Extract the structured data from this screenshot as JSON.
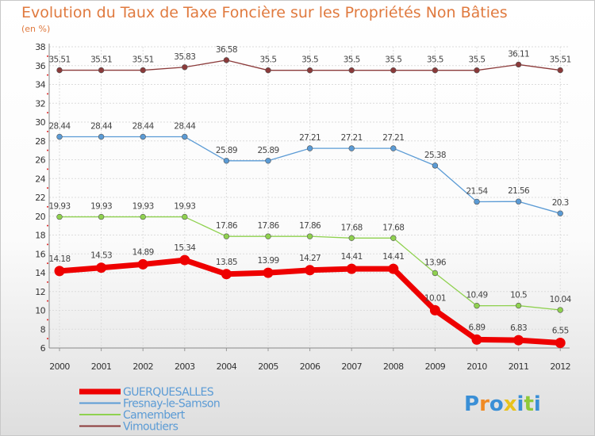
{
  "chart_data": {
    "type": "line",
    "title": "Evolution du Taux de Taxe Foncière sur les Propriétés Non Bâties",
    "subtitle": "(en %)",
    "xlabel": "",
    "ylabel": "",
    "ylim": [
      6,
      38
    ],
    "yticks": [
      6,
      8,
      10,
      12,
      14,
      16,
      18,
      20,
      22,
      24,
      26,
      28,
      30,
      32,
      34,
      36,
      38
    ],
    "grid": true,
    "categories": [
      "2000",
      "2001",
      "2002",
      "2003",
      "2004",
      "2005",
      "2006",
      "2007",
      "2008",
      "2009",
      "2010",
      "2011",
      "2012"
    ],
    "series": [
      {
        "name": "GUERQUESALLES",
        "color": "#ee0000",
        "values": [
          14.18,
          14.53,
          14.89,
          15.34,
          13.85,
          13.99,
          14.27,
          14.41,
          14.41,
          10.01,
          6.89,
          6.83,
          6.55
        ],
        "labels": [
          "14.18",
          "14.53",
          "14.89",
          "15.34",
          "13.85",
          "13.99",
          "14.27",
          "14.41",
          "14.41",
          "10.01",
          "6.89",
          "6.83",
          "6.55"
        ]
      },
      {
        "name": "Fresnay-le-Samson",
        "color": "#5b9bd5",
        "values": [
          28.44,
          28.44,
          28.44,
          28.44,
          25.89,
          25.89,
          27.21,
          27.21,
          27.21,
          25.38,
          21.54,
          21.56,
          20.3
        ],
        "labels": [
          "28.44",
          "28.44",
          "28.44",
          "28.44",
          "25.89",
          "25.89",
          "27.21",
          "27.21",
          "27.21",
          "25.38",
          "21.54",
          "21.56",
          "20.3"
        ]
      },
      {
        "name": "Camembert",
        "color": "#8fd14f",
        "values": [
          19.93,
          19.93,
          19.93,
          19.93,
          17.86,
          17.86,
          17.86,
          17.68,
          17.68,
          13.96,
          10.49,
          10.5,
          10.04
        ],
        "labels": [
          "19.93",
          "19.93",
          "19.93",
          "19.93",
          "17.86",
          "17.86",
          "17.86",
          "17.68",
          "17.68",
          "13.96",
          "10.49",
          "10.5",
          "10.04"
        ]
      },
      {
        "name": "Vimoutiers",
        "color": "#8b3a3a",
        "values": [
          35.51,
          35.51,
          35.51,
          35.83,
          36.58,
          35.5,
          35.5,
          35.5,
          35.5,
          35.5,
          35.5,
          36.11,
          35.51
        ],
        "labels": [
          "35.51",
          "35.51",
          "35.51",
          "35.83",
          "36.58",
          "35.5",
          "35.5",
          "35.5",
          "35.5",
          "35.5",
          "35.5",
          "36.11",
          "35.51"
        ]
      }
    ],
    "legend_position": "bottom-left"
  },
  "logo": {
    "text": "Proxiti",
    "colors": [
      "#3a8fd6",
      "#f08a24",
      "#3a8fd6",
      "#e8c21c",
      "#3a8fd6",
      "#8fc93a",
      "#3a8fd6"
    ]
  }
}
